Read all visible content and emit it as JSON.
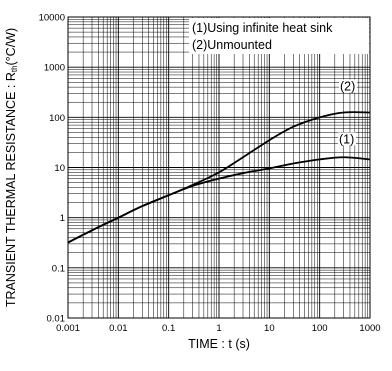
{
  "chart_data": {
    "type": "line",
    "xlabel": "TIME : t (s)",
    "ylabel_prefix": "TRANSIENT THERMAL RESISTANCE : R",
    "ylabel_sub": "th",
    "ylabel_unit": "(°C/W)",
    "x_scale": "log",
    "y_scale": "log",
    "xlim": [
      0.001,
      1000
    ],
    "ylim": [
      0.01,
      10000
    ],
    "grid": true,
    "x_ticks": [
      {
        "value": 0.001,
        "label": "0.001"
      },
      {
        "value": 0.01,
        "label": "0.01"
      },
      {
        "value": 0.1,
        "label": "0.1"
      },
      {
        "value": 1,
        "label": "1"
      },
      {
        "value": 10,
        "label": "10"
      },
      {
        "value": 100,
        "label": "100"
      },
      {
        "value": 1000,
        "label": "1000"
      }
    ],
    "y_ticks": [
      {
        "value": 0.01,
        "label": "0.01"
      },
      {
        "value": 0.1,
        "label": "0.1"
      },
      {
        "value": 1,
        "label": "1"
      },
      {
        "value": 10,
        "label": "10"
      },
      {
        "value": 100,
        "label": "100"
      },
      {
        "value": 1000,
        "label": "1000"
      },
      {
        "value": 10000,
        "label": "10000"
      }
    ],
    "legend": {
      "placement": "top-right",
      "entries": [
        "(1)Using infinite heat sink",
        "(2)Unmounted"
      ]
    },
    "series": [
      {
        "name": "(1)",
        "x": [
          0.001,
          0.003,
          0.01,
          0.03,
          0.1,
          0.3,
          1,
          3,
          10,
          30,
          100,
          300,
          1000
        ],
        "y": [
          0.32,
          0.56,
          1.0,
          1.7,
          2.8,
          4.3,
          6.0,
          7.7,
          9.6,
          12.0,
          14.5,
          16.0,
          14.5
        ],
        "label": "(1)"
      },
      {
        "name": "(2)",
        "x": [
          0.001,
          0.003,
          0.01,
          0.03,
          0.1,
          0.3,
          1,
          3,
          10,
          30,
          100,
          300,
          1000
        ],
        "y": [
          0.32,
          0.56,
          1.0,
          1.7,
          2.8,
          4.5,
          8.0,
          16.0,
          35.0,
          65.0,
          100.0,
          125.0,
          125.0
        ],
        "label": "(2)"
      }
    ]
  }
}
